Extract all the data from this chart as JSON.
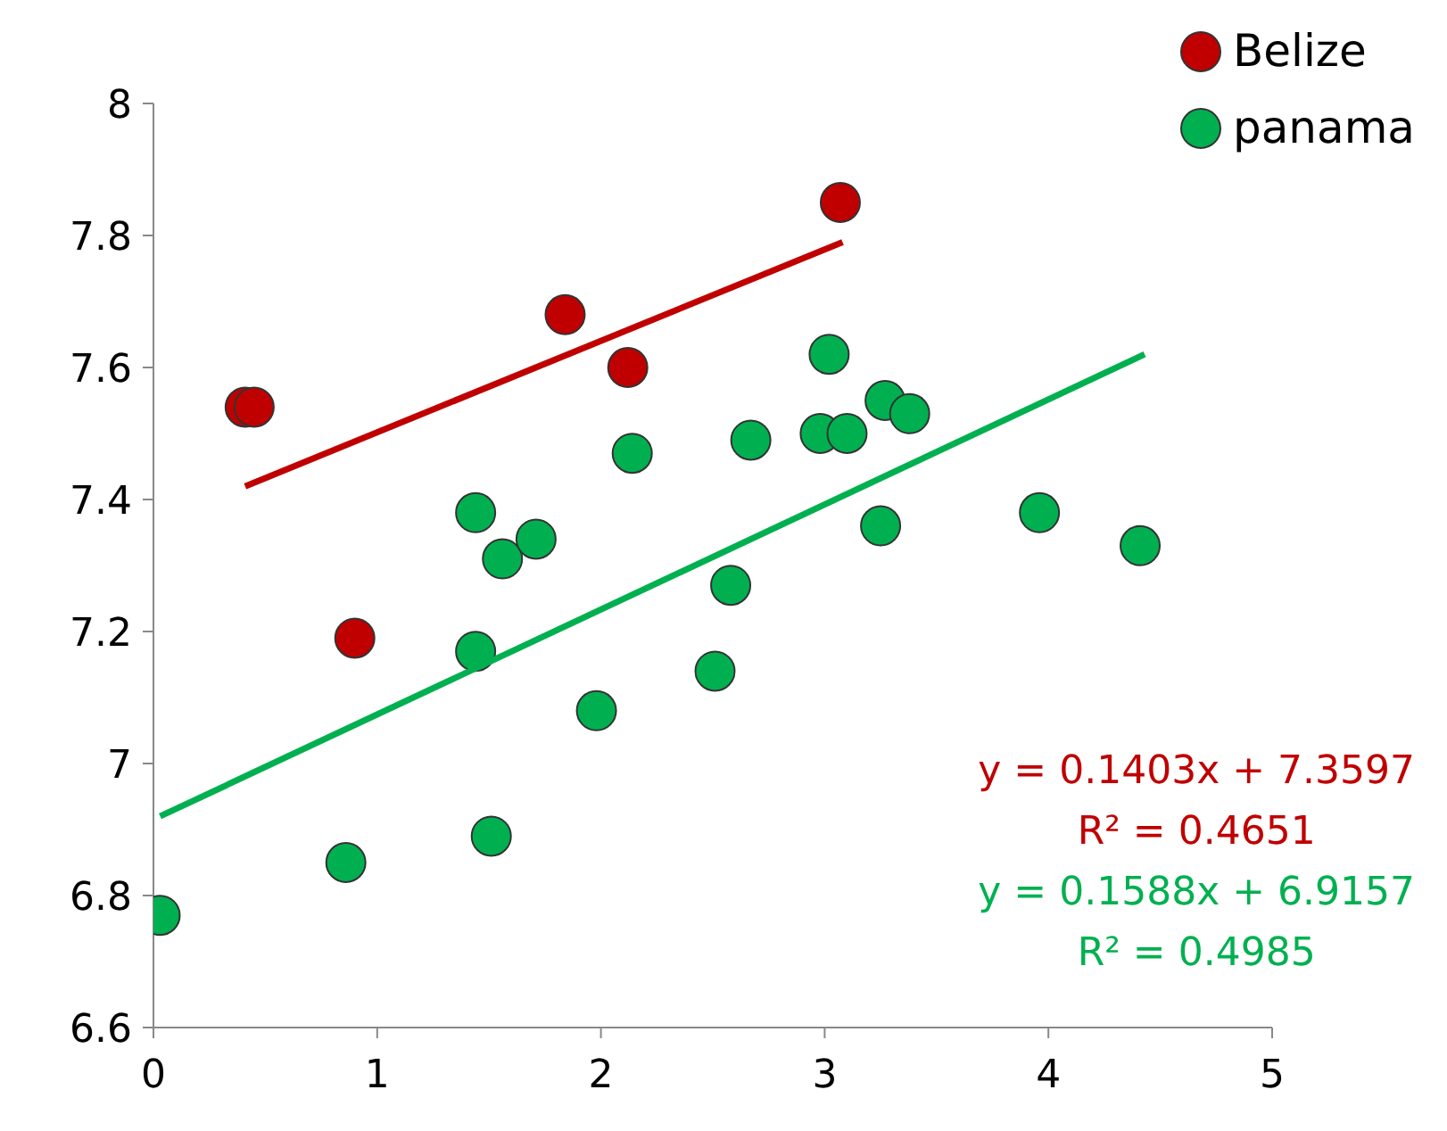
{
  "chart_data": {
    "type": "scatter",
    "xlim": [
      0,
      5
    ],
    "xticks": [
      0,
      1,
      2,
      3,
      4,
      5
    ],
    "ylim": [
      6.6,
      8
    ],
    "yticks": [
      6.6,
      6.8,
      7,
      7.2,
      7.4,
      7.6,
      7.8,
      8
    ],
    "grid": false,
    "legend": "top right",
    "marker": "circle",
    "series": [
      {
        "name": "Belize",
        "color": "#c00000",
        "x": [
          0.41,
          0.45,
          0.9,
          1.84,
          2.12,
          3.07
        ],
        "values": [
          7.54,
          7.54,
          7.19,
          7.68,
          7.6,
          7.85
        ]
      },
      {
        "name": "panama",
        "color": "#00b050",
        "x": [
          0.03,
          0.86,
          1.51,
          1.44,
          1.44,
          1.56,
          1.71,
          1.98,
          2.14,
          2.51,
          2.58,
          2.67,
          2.98,
          3.02,
          3.1,
          3.25,
          3.27,
          3.38,
          3.96,
          4.41
        ],
        "values": [
          6.77,
          6.85,
          6.89,
          7.17,
          7.38,
          7.31,
          7.34,
          7.08,
          7.47,
          7.14,
          7.27,
          7.49,
          7.5,
          7.62,
          7.5,
          7.36,
          7.55,
          7.53,
          7.38,
          7.33
        ]
      },
      {
        "type": "line",
        "marker": "none",
        "color": "#c00000",
        "x": [
          0.41,
          3.08
        ],
        "values": [
          7.42,
          7.79
        ]
      },
      {
        "type": "line",
        "marker": "none",
        "color": "#00b050",
        "x": [
          0.03,
          4.43
        ],
        "values": [
          6.92,
          7.62
        ]
      }
    ],
    "annotations": [
      "y = 0.1403x + 7.3597",
      "R² = 0.4651",
      "y = 0.1588x + 6.9157",
      "R² = 0.4985"
    ]
  }
}
